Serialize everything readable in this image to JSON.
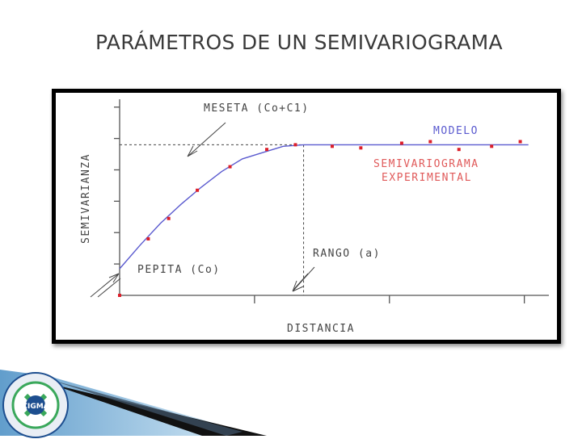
{
  "slide": {
    "title": "PARÁMETROS DE UN SEMIVARIOGRAMA"
  },
  "diagram": {
    "y_axis_label": "SEMIVARIANZA",
    "x_axis_label": "DISTANCIA",
    "annotations": {
      "sill": "MESETA (Co+C1)",
      "model": "MODELO",
      "experimental_line1": "SEMIVARIOGRAMA",
      "experimental_line2": "EXPERIMENTAL",
      "nugget": "PEPITA (Co)",
      "range": "RANGO (a)"
    },
    "colors": {
      "model_curve": "#5a5acf",
      "points": "#dd1f2a",
      "experimental_text": "#e05a5a",
      "axes": "#555555",
      "frame": "#000000"
    }
  },
  "chart_data": {
    "type": "scatter",
    "series": [
      {
        "name": "SEMIVARIOGRAMA EXPERIMENTAL",
        "points": [
          [
            0,
            0.0
          ],
          [
            0.07,
            0.36
          ],
          [
            0.12,
            0.49
          ],
          [
            0.19,
            0.67
          ],
          [
            0.27,
            0.82
          ],
          [
            0.36,
            0.93
          ],
          [
            0.43,
            0.96
          ],
          [
            0.52,
            0.95
          ],
          [
            0.59,
            0.94
          ],
          [
            0.69,
            0.97
          ],
          [
            0.76,
            0.98
          ],
          [
            0.83,
            0.93
          ],
          [
            0.91,
            0.95
          ],
          [
            0.98,
            0.98
          ]
        ]
      },
      {
        "name": "MODELO",
        "points": [
          [
            0,
            0.17
          ],
          [
            0.05,
            0.32
          ],
          [
            0.1,
            0.46
          ],
          [
            0.15,
            0.58
          ],
          [
            0.2,
            0.69
          ],
          [
            0.25,
            0.79
          ],
          [
            0.3,
            0.87
          ],
          [
            0.35,
            0.91
          ],
          [
            0.4,
            0.95
          ],
          [
            0.45,
            0.96
          ],
          [
            1.0,
            0.96
          ]
        ]
      }
    ],
    "nugget": 0.17,
    "sill": 0.96,
    "range": 0.45,
    "xlim": [
      0,
      1.05
    ],
    "ylim": [
      0,
      1.25
    ],
    "grid": false
  },
  "logo": {
    "text": "CIGMA",
    "colors": [
      "#1d4e8f",
      "#3aa85b",
      "#e9eef5"
    ]
  }
}
